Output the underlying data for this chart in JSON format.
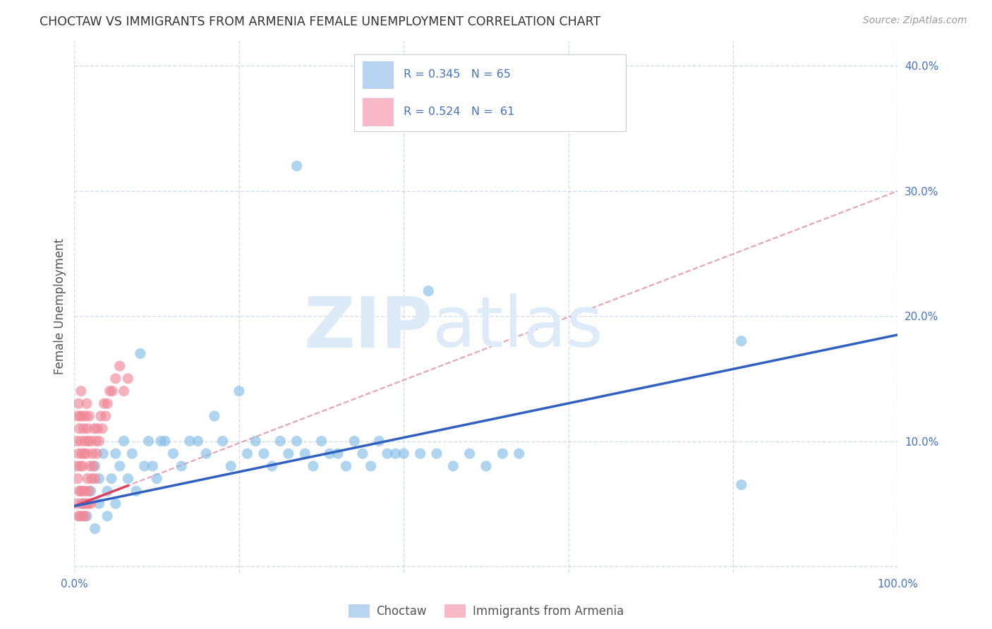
{
  "title": "CHOCTAW VS IMMIGRANTS FROM ARMENIA FEMALE UNEMPLOYMENT CORRELATION CHART",
  "source": "Source: ZipAtlas.com",
  "ylabel": "Female Unemployment",
  "scatter_color1": "#85bde8",
  "scatter_color2": "#f08898",
  "trendline_color1": "#3060c0",
  "trendline_color2": "#e04060",
  "trendline_dash_color": "#e8a0b0",
  "legend_color1": "#b8d4f0",
  "legend_color2": "#f8b8c8",
  "watermark_color": "#ddeaf8",
  "background_color": "#ffffff",
  "grid_color": "#c8d4e0",
  "choctaw_trendline": [
    0.048,
    0.185
  ],
  "armenia_trendline_solid_end": 0.065,
  "armenia_trendline": [
    0.048,
    0.3
  ],
  "xlim": [
    0.0,
    1.0
  ],
  "ylim": [
    0.0,
    0.42
  ]
}
